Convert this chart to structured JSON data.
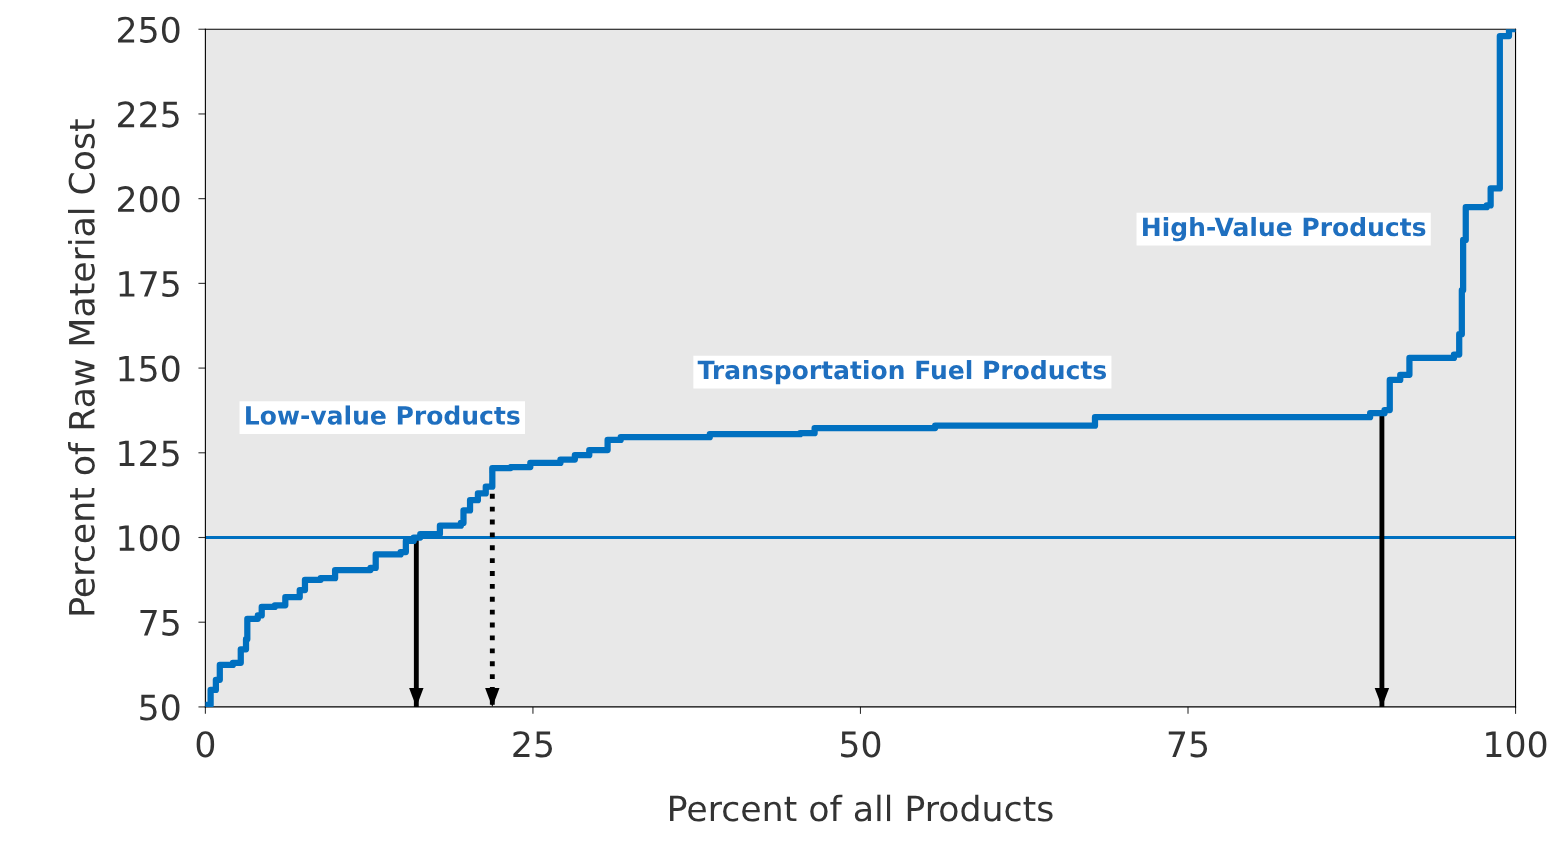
{
  "chart_data": {
    "type": "step",
    "xlabel": "Percent of all Products",
    "ylabel": "Percent of Raw Material Cost",
    "x": [
      0.15,
      0.4,
      0.8,
      1.1,
      2.1,
      2.7,
      3.1,
      3.2,
      4.0,
      4.3,
      5.3,
      6.1,
      7.2,
      7.6,
      8.8,
      9.9,
      12.6,
      13.0,
      14.9,
      15.3,
      15.9,
      16.4,
      17.9,
      19.5,
      19.7,
      20.2,
      20.8,
      21.4,
      21.9,
      23.3,
      24.8,
      27.1,
      28.2,
      29.3,
      30.7,
      31.7,
      38.5,
      45.4,
      46.5,
      55.7,
      67.9,
      88.9,
      90.0,
      90.4,
      91.2,
      91.9,
      95.3,
      95.7,
      95.9,
      96.0,
      96.2,
      97.8,
      98.1,
      98.8,
      99.5,
      100
    ],
    "series": [
      {
        "color": "#0070c0",
        "values": [
          50.6,
          55,
          58,
          62.4,
          63,
          67,
          70,
          76,
          77,
          79.5,
          80,
          82.4,
          84.5,
          87.5,
          88,
          90.4,
          91,
          95,
          95.7,
          99,
          100,
          101,
          103.5,
          104.3,
          108,
          111,
          113,
          115,
          120.5,
          120.8,
          122,
          123,
          124.3,
          125.8,
          128.8,
          129.6,
          130.5,
          130.8,
          132.3,
          133,
          135.5,
          136.7,
          137.6,
          146.5,
          148,
          153,
          154,
          160,
          173,
          187.8,
          197.5,
          198,
          203,
          248,
          250,
          250
        ]
      }
    ],
    "xlim": [
      0,
      100
    ],
    "ylim": [
      50,
      250
    ],
    "xticks": [
      0,
      25,
      50,
      75,
      100
    ],
    "yticks": [
      50,
      75,
      100,
      125,
      150,
      175,
      200,
      225,
      250
    ],
    "grid": false,
    "ref_lines": [
      {
        "axis": "y",
        "value": 100,
        "color": "#0070c0",
        "line_style": "solid"
      },
      {
        "axis": "x",
        "value": 16.1,
        "color": "#000000",
        "line_style": "solid"
      },
      {
        "axis": "x",
        "value": 21.9,
        "color": "#000000",
        "line_style": "dotted"
      },
      {
        "axis": "x",
        "value": 89.8,
        "color": "#000000",
        "line_style": "solid"
      }
    ],
    "annotations": [
      "Low-value Products",
      "Transportation Fuel Products",
      "High-Value Products"
    ]
  }
}
